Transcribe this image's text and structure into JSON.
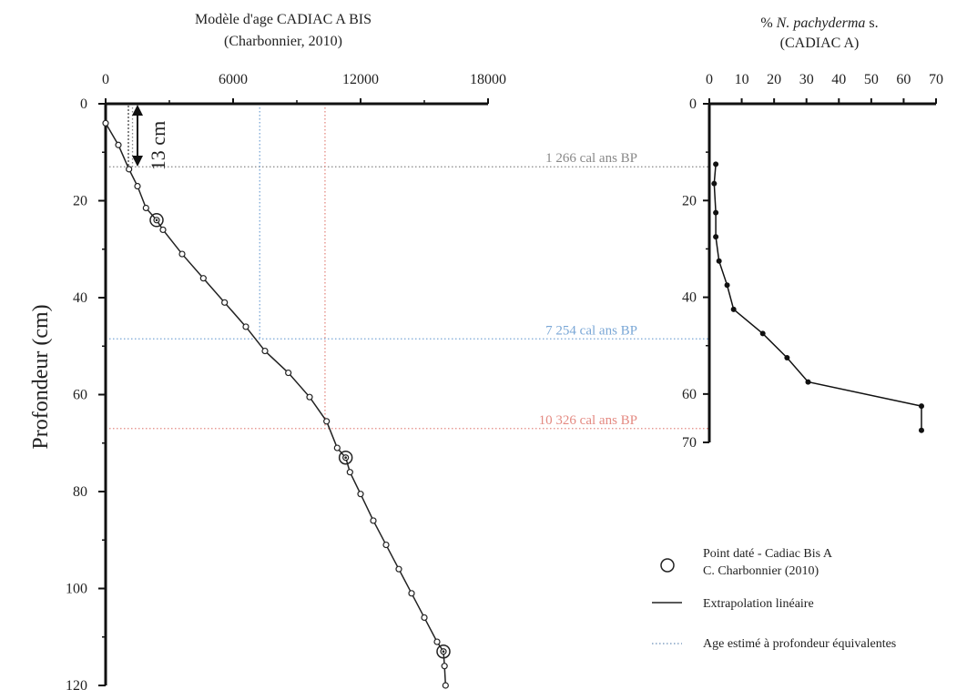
{
  "chart_data": [
    {
      "type": "line",
      "title": "Modèle d'age CADIAC A BIS",
      "subtitle": "(Charbonnier, 2010)",
      "xlabel": "",
      "ylabel": "Profondeur (cm)",
      "xlim": [
        0,
        18000
      ],
      "ylim": [
        0,
        120
      ],
      "y_inverted": true,
      "x_axis_position": "top",
      "x_ticks": [
        "0",
        "6000",
        "12000",
        "18000"
      ],
      "y_ticks": [
        "0",
        "20",
        "40",
        "60",
        "80",
        "100",
        "120"
      ],
      "series": [
        {
          "name": "Extrapolation linéaire",
          "points": [
            [
              0,
              4
            ],
            [
              600,
              8.5
            ],
            [
              1100,
              13.5
            ],
            [
              1500,
              17
            ],
            [
              1900,
              21.5
            ],
            [
              2400,
              24
            ],
            [
              2700,
              26
            ],
            [
              3600,
              31
            ],
            [
              4600,
              36
            ],
            [
              5600,
              41
            ],
            [
              6600,
              46
            ],
            [
              7500,
              51
            ],
            [
              8600,
              55.5
            ],
            [
              9600,
              60.5
            ],
            [
              10400,
              65.5
            ],
            [
              10900,
              71
            ],
            [
              11300,
              73
            ],
            [
              11500,
              76
            ],
            [
              12000,
              80.5
            ],
            [
              12600,
              86
            ],
            [
              13200,
              91
            ],
            [
              13800,
              96
            ],
            [
              14400,
              101
            ],
            [
              15000,
              106
            ],
            [
              15600,
              111
            ],
            [
              15900,
              113
            ],
            [
              15950,
              116
            ],
            [
              16000,
              120
            ]
          ],
          "dated_points": [
            [
              2400,
              24
            ],
            [
              11300,
              73
            ],
            [
              15900,
              113
            ]
          ]
        }
      ],
      "reference_lines": [
        {
          "label": "1 266 cal ans BP",
          "age": 1266,
          "depth": 13,
          "color": "#888888"
        },
        {
          "label": "7 254 cal ans BP",
          "age": 7254,
          "depth": 48.5,
          "color": "#7aa7d6"
        },
        {
          "label": "10 326 cal ans BP",
          "age": 10326,
          "depth": 67,
          "color": "#e48a82"
        }
      ],
      "scale_annotation": "13 cm"
    },
    {
      "type": "line",
      "title": "% N. pachyderma s.",
      "subtitle": "(CADIAC A)",
      "xlim": [
        0,
        70
      ],
      "ylim": [
        0,
        70
      ],
      "y_inverted": true,
      "x_axis_position": "top",
      "x_ticks": [
        "0",
        "10",
        "20",
        "30",
        "40",
        "50",
        "60",
        "70"
      ],
      "y_ticks": [
        "0",
        "20",
        "40",
        "60",
        "70"
      ],
      "series": [
        {
          "name": "",
          "points": [
            [
              2,
              12.5
            ],
            [
              1.5,
              16.5
            ],
            [
              2,
              22.5
            ],
            [
              2,
              27.5
            ],
            [
              3,
              32.5
            ],
            [
              5.5,
              37.5
            ],
            [
              7.5,
              42.5
            ],
            [
              16.5,
              47.5
            ],
            [
              24,
              52.5
            ],
            [
              30.5,
              57.5
            ],
            [
              65.5,
              62.5
            ],
            [
              65.5,
              67.5
            ]
          ]
        }
      ]
    }
  ],
  "legend": {
    "dated_point_line1": "Point daté - Cadiac Bis A",
    "dated_point_line2": "C. Charbonnier (2010)",
    "linear": "Extrapolation linéaire",
    "estimated": "Age estimé à profondeur équivalentes"
  }
}
